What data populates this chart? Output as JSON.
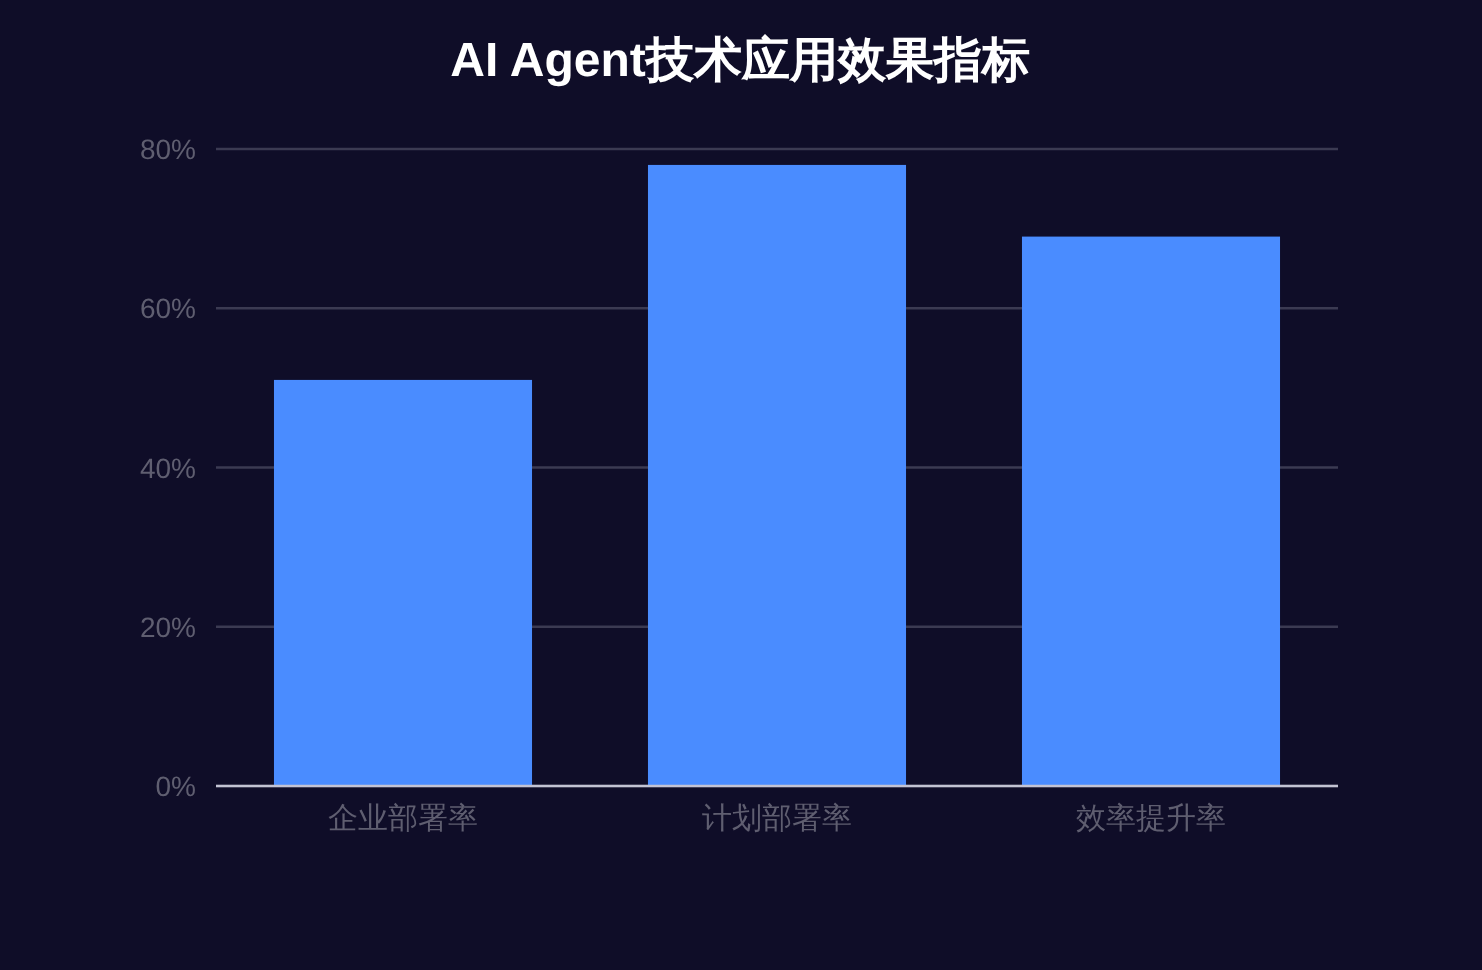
{
  "chart_data": {
    "type": "bar",
    "title": "AI Agent技术应用效果指标",
    "categories": [
      "企业部署率",
      "计划部署率",
      "效率提升率"
    ],
    "values": [
      51,
      78,
      69
    ],
    "color": "#4a8cff",
    "ylim": [
      0,
      80
    ],
    "yticks": [
      {
        "value": 0,
        "label": "0%"
      },
      {
        "value": 20,
        "label": "20%"
      },
      {
        "value": 40,
        "label": "40%"
      },
      {
        "value": 60,
        "label": "60%"
      },
      {
        "value": 80,
        "label": "80%"
      }
    ],
    "grid": "y"
  }
}
